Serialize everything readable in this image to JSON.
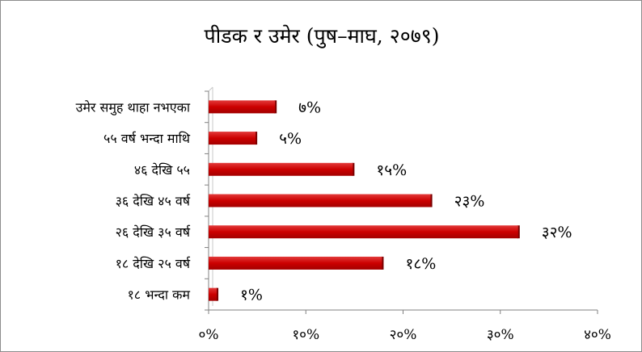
{
  "chart_data": {
    "type": "bar",
    "orientation": "horizontal",
    "title": "पीडक र उमेर (पुष–माघ, २०७९)",
    "categories": [
      "उमेर समुह थाहा नभएका",
      "५५ वर्ष भन्दा माथि",
      "४६ देखि ५५",
      "३६ देखि ४५ वर्ष",
      "२६ देखि ३५ वर्ष",
      "१८ देखि २५ वर्ष",
      "१८ भन्दा कम"
    ],
    "values": [
      7,
      5,
      15,
      23,
      32,
      18,
      1
    ],
    "data_labels": [
      "७%",
      "५%",
      "१५%",
      "२३%",
      "३२%",
      "१८%",
      "१%"
    ],
    "xlim": [
      0,
      40
    ],
    "x_ticks": [
      0,
      10,
      20,
      30,
      40
    ],
    "x_tick_labels": [
      "०%",
      "१०%",
      "२०%",
      "३०%",
      "४०%"
    ],
    "bar_color": "#cc0000",
    "grid": false,
    "legend": "none"
  }
}
